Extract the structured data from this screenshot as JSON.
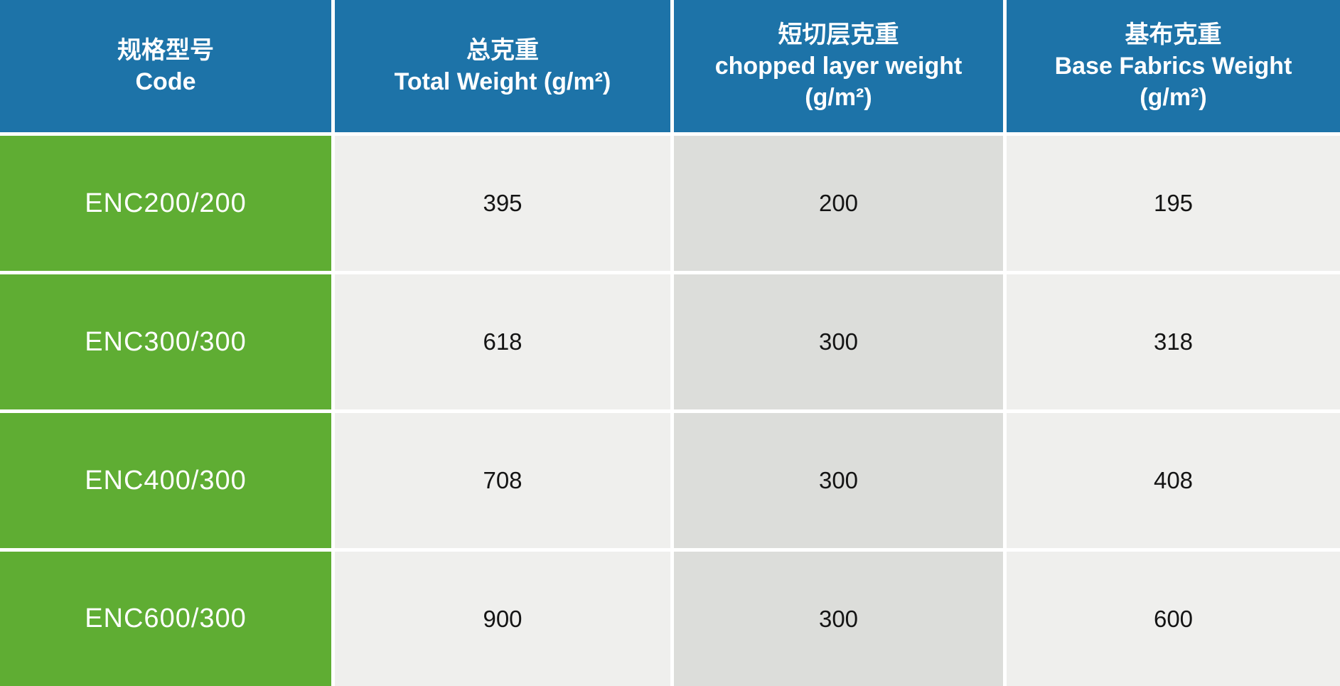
{
  "colors": {
    "header_bg": "#1d73a8",
    "header_text": "#ffffff",
    "code_col_bg": "#5fad33",
    "code_text": "#ffffff",
    "value_col_light": "#efefed",
    "value_col_dark": "#dcddda",
    "value_text": "#141414",
    "divider": "#ffffff"
  },
  "header": {
    "code": {
      "zh": "规格型号",
      "en": "Code"
    },
    "total_weight": {
      "zh": "总克重",
      "en": "Total Weight (g/m²)"
    },
    "chopped_layer_weight": {
      "zh": "短切层克重",
      "en": "chopped layer weight",
      "unit": "(g/m²)"
    },
    "base_fabric_weight": {
      "zh": "基布克重",
      "en": "Base Fabrics Weight",
      "unit": "(g/m²)"
    }
  },
  "rows": [
    {
      "code": "ENC200/200",
      "total_weight": "395",
      "chopped_layer_weight": "200",
      "base_fabric_weight": "195"
    },
    {
      "code": "ENC300/300",
      "total_weight": "618",
      "chopped_layer_weight": "300",
      "base_fabric_weight": "318"
    },
    {
      "code": "ENC400/300",
      "total_weight": "708",
      "chopped_layer_weight": "300",
      "base_fabric_weight": "408"
    },
    {
      "code": "ENC600/300",
      "total_weight": "900",
      "chopped_layer_weight": "300",
      "base_fabric_weight": "600"
    }
  ],
  "chart_data": {
    "type": "table",
    "columns": [
      "规格型号 Code",
      "总克重 Total Weight (g/m²)",
      "短切层克重 chopped layer weight (g/m²)",
      "基布克重 Base Fabrics Weight (g/m²)"
    ],
    "rows": [
      [
        "ENC200/200",
        395,
        200,
        195
      ],
      [
        "ENC300/300",
        618,
        300,
        318
      ],
      [
        "ENC400/300",
        708,
        300,
        408
      ],
      [
        "ENC600/300",
        900,
        300,
        600
      ]
    ]
  }
}
